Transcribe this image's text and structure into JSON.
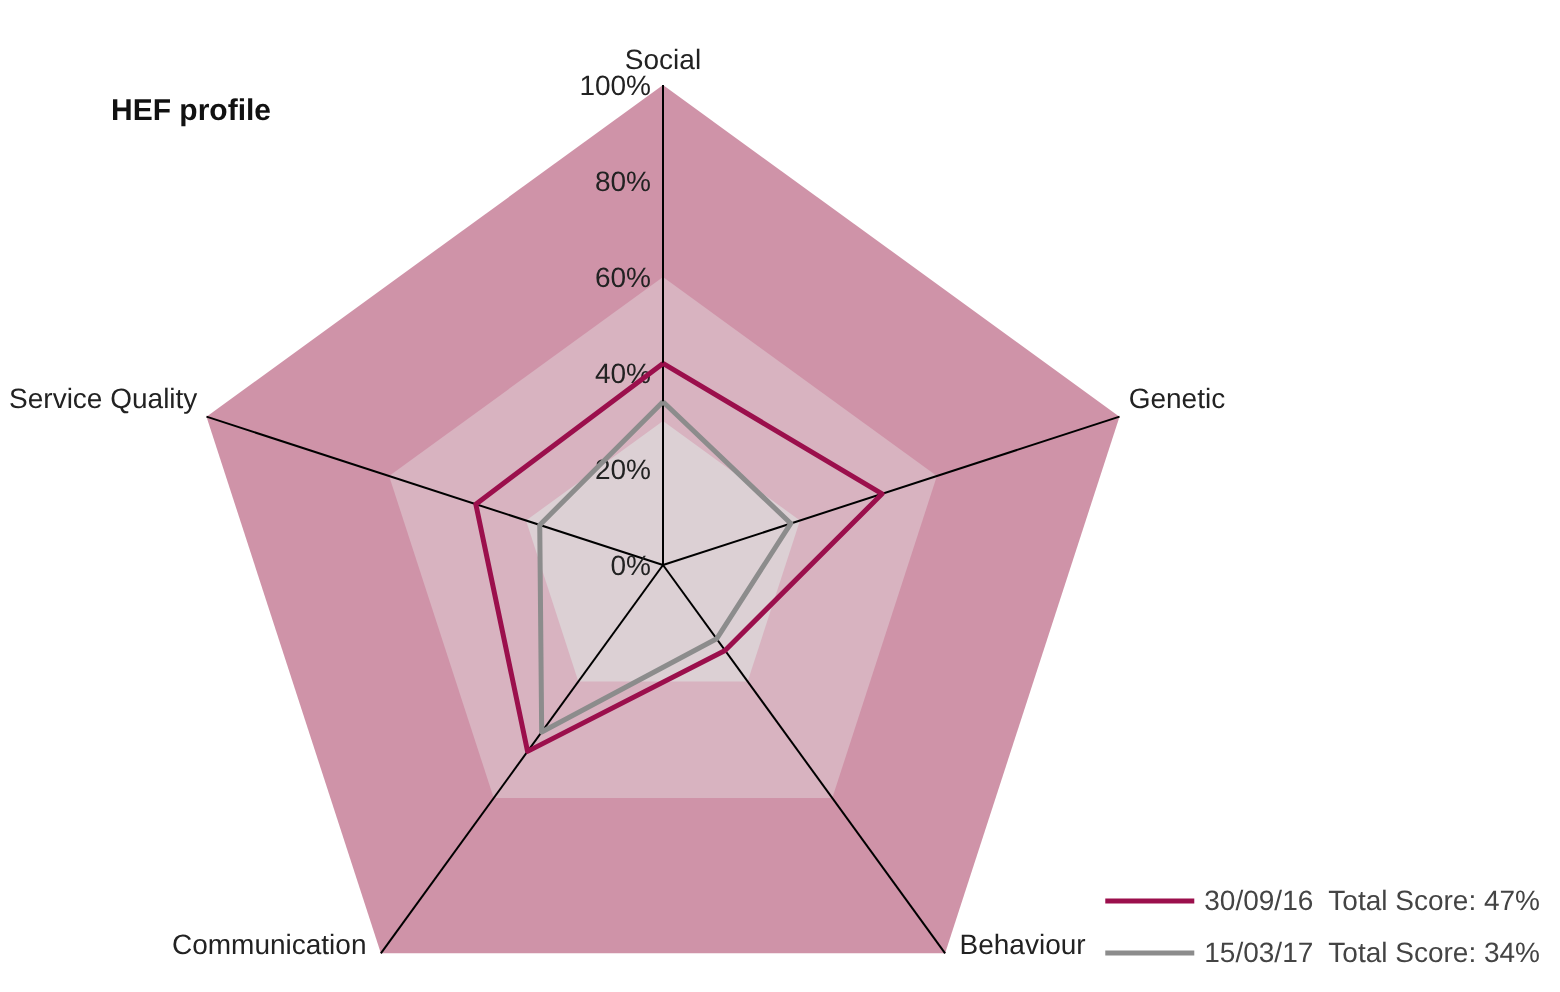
{
  "chart_data": {
    "type": "radar",
    "title": "HEF profile",
    "categories": [
      "Social",
      "Genetic",
      "Behaviour",
      "Communication",
      "Service Quality"
    ],
    "series": [
      {
        "name": "30/09/16  Total Score: 47%",
        "color": "#9b0f4c",
        "values": [
          42,
          48,
          22,
          48,
          41
        ]
      },
      {
        "name": "15/03/17  Total Score: 34%",
        "color": "#8c8c8c",
        "values": [
          34,
          28,
          19,
          43,
          27
        ]
      }
    ],
    "ylim": [
      0,
      100
    ],
    "yticks": [
      {
        "value": 0,
        "label": "0%"
      },
      {
        "value": 20,
        "label": "20%"
      },
      {
        "value": 40,
        "label": "40%"
      },
      {
        "value": 60,
        "label": "60%"
      },
      {
        "value": 80,
        "label": "80%"
      },
      {
        "value": 100,
        "label": "100%"
      }
    ],
    "legend": "bottom right",
    "marker": "none",
    "line_style": "solid"
  }
}
